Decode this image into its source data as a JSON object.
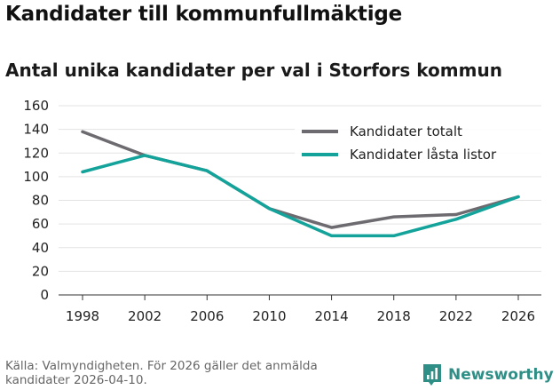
{
  "header": {
    "title": "Kandidater till kommunfullmäktige",
    "subtitle": "Antal unika kandidater per val i Storfors kommun"
  },
  "chart_data": {
    "type": "line",
    "title": "Kandidater till kommunfullmäktige",
    "subtitle": "Antal unika kandidater per val i Storfors kommun",
    "xlabel": "",
    "ylabel": "",
    "x": [
      1998,
      2002,
      2006,
      2010,
      2014,
      2018,
      2022,
      2026
    ],
    "ylim": [
      0,
      160
    ],
    "yticks": [
      0,
      20,
      40,
      60,
      80,
      100,
      120,
      140,
      160
    ],
    "grid": true,
    "legend_position": "top-right",
    "series": [
      {
        "name": "Kandidater totalt",
        "color": "#6d6b70",
        "values": [
          138,
          118,
          105,
          73,
          57,
          66,
          68,
          83
        ]
      },
      {
        "name": "Kandidater låsta listor",
        "color": "#13a39a",
        "values": [
          104,
          118,
          105,
          73,
          50,
          50,
          64,
          83
        ]
      }
    ]
  },
  "footer": {
    "source": "Källa: Valmyndigheten. För 2026 gäller det anmälda kandidater 2026-04-10.",
    "brand": "Newsworthy",
    "brand_icon": "bar-chart-logo-icon",
    "brand_color": "#2f8f86"
  }
}
